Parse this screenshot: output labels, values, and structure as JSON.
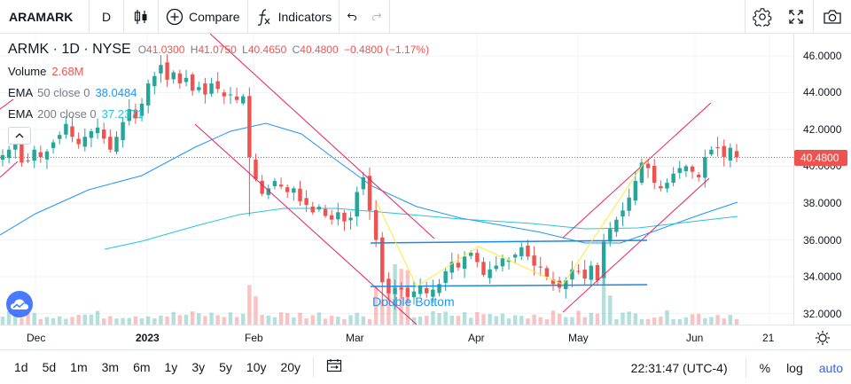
{
  "toolbar": {
    "symbol": "ARAMARK",
    "interval": "D",
    "compare_label": "Compare",
    "indicators_label": "Indicators"
  },
  "legend": {
    "title": "ARMK · 1D · NYSE",
    "open_key": "O",
    "open_val": "41.0300",
    "high_key": "H",
    "high_val": "41.0750",
    "low_key": "L",
    "low_val": "40.4650",
    "close_key": "C",
    "close_val": "40.4800",
    "change": "−0.4800 (−1.17%)",
    "volume_label": "Volume",
    "volume_val": "2.68M",
    "ema50_label": "EMA",
    "ema50_params": "50 close 0",
    "ema50_val": "38.0484",
    "ema200_label": "EMA",
    "ema200_params": "200 close 0",
    "ema200_val": "37.2371"
  },
  "colors": {
    "up": "#26a69a",
    "down": "#ef5350",
    "ema50": "#2196f3",
    "ema200": "#26c6da",
    "channel": "#e91e63",
    "zigzag": "#ffeb3b",
    "support": "#1e88e5"
  },
  "price_axis": {
    "ticks": [
      "46.0000",
      "44.0000",
      "42.0000",
      "40.0000",
      "38.0000",
      "36.0000",
      "34.0000",
      "32.0000"
    ],
    "last_price": "40.4800"
  },
  "annotation": "Double Bottom",
  "time_axis": {
    "labels": [
      {
        "text": "Dec",
        "bold": false
      },
      {
        "text": "2023",
        "bold": true
      },
      {
        "text": "Feb",
        "bold": false
      },
      {
        "text": "Mar",
        "bold": false
      },
      {
        "text": "Apr",
        "bold": false
      },
      {
        "text": "May",
        "bold": false
      },
      {
        "text": "Jun",
        "bold": false
      },
      {
        "text": "21",
        "bold": false
      }
    ]
  },
  "bottombar": {
    "ranges": [
      "1d",
      "5d",
      "1m",
      "3m",
      "6m",
      "1y",
      "3y",
      "5y",
      "10y",
      "20y"
    ],
    "clock": "22:31:47 (UTC-4)",
    "percent_label": "%",
    "log_label": "log",
    "auto_label": "auto"
  },
  "chart_data": {
    "type": "candlestick",
    "title": "",
    "ylim": [
      31.4,
      47.2
    ],
    "start": "2022-11-25",
    "end": "2023-06-16",
    "seed": [
      40.6,
      40.9,
      41.6,
      40.2,
      40.3,
      40.9,
      40.5,
      40.8,
      41.3,
      41.7,
      42.3,
      41.6,
      41.2,
      41.6,
      41.9,
      42.1,
      41.5,
      40.9,
      41.6,
      42.4,
      43.1,
      42.6,
      43.4,
      44.5,
      44.9,
      45.5,
      44.7,
      45.1,
      44.5,
      44.8,
      44.1,
      44.3,
      43.9,
      44.5,
      44.2,
      43.8,
      43.9,
      43.6,
      43.8,
      40.5,
      39.3,
      38.5,
      38.8,
      39.2,
      38.9,
      38.6,
      38.8,
      38.1,
      37.9,
      37.5,
      37.8,
      37.3,
      37.1,
      37.5,
      37.0,
      37.2,
      38.6,
      39.4,
      37.6,
      36.0,
      33.7,
      33.1,
      33.4,
      33.3,
      32.9,
      33.2,
      33.5,
      33.1,
      33.3,
      33.6,
      34.3,
      34.8,
      34.5,
      35.1,
      35.3,
      34.8,
      34.1,
      34.4,
      34.6,
      35.0,
      34.9,
      35.2,
      35.6,
      35.1,
      34.6,
      34.5,
      34.0,
      33.6,
      33.4,
      33.8,
      34.4,
      34.3,
      33.9,
      34.6,
      33.8,
      35.9,
      36.6,
      37.1,
      37.6,
      38.3,
      39.2,
      40.2,
      39.9,
      39.1,
      38.8,
      39.1,
      39.6,
      39.9,
      40.0,
      39.7,
      39.4,
      40.5,
      40.9,
      41.0,
      40.5,
      41.0,
      40.48
    ],
    "ema50_end": 38.0484,
    "ema200_end": 37.2371
  }
}
